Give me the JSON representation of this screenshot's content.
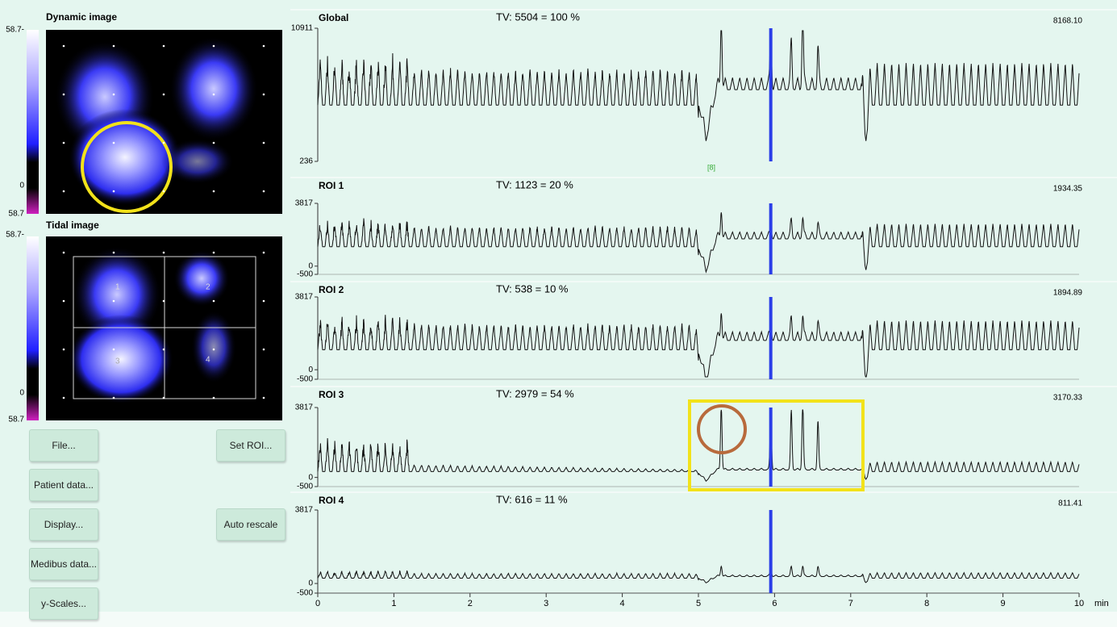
{
  "dynamic": {
    "title": "Dynamic image",
    "scale": {
      "top": "58.7-",
      "zero": "0",
      "bottom": "58.7"
    }
  },
  "tidal": {
    "title": "Tidal image",
    "scale": {
      "top": "58.7-",
      "zero": "0",
      "bottom": "58.7"
    },
    "roi_labels": [
      "1",
      "2",
      "3",
      "4"
    ]
  },
  "buttons": {
    "left": [
      "File...",
      "Patient data...",
      "Display...",
      "Medibus data...",
      "y-Scales..."
    ],
    "right": [
      "Set ROI...",
      "Auto rescale"
    ]
  },
  "plots": [
    {
      "name": "Global",
      "tv": "TV: 5504 = 100 %",
      "value": "8168.10",
      "ylim": [
        236,
        10911
      ],
      "yticks": [
        10911,
        236
      ]
    },
    {
      "name": "ROI 1",
      "tv": "TV: 1123 = 20 %",
      "value": "1934.35",
      "ylim": [
        -500,
        3817
      ],
      "yticks": [
        3817,
        0,
        -500
      ]
    },
    {
      "name": "ROI 2",
      "tv": "TV: 538 = 10 %",
      "value": "1894.89",
      "ylim": [
        -500,
        3817
      ],
      "yticks": [
        3817,
        0,
        -500
      ]
    },
    {
      "name": "ROI 3",
      "tv": "TV: 2979 = 54 %",
      "value": "3170.33",
      "ylim": [
        -500,
        3817
      ],
      "yticks": [
        3817,
        0,
        -500
      ]
    },
    {
      "name": "ROI 4",
      "tv": "TV: 616 = 11 %",
      "value": "811.41",
      "ylim": [
        -500,
        3817
      ],
      "yticks": [
        3817,
        0,
        -500
      ]
    }
  ],
  "marker": "[8]",
  "x_axis": {
    "xlim": [
      0,
      10
    ],
    "xticks": [
      0,
      1,
      2,
      3,
      4,
      5,
      6,
      7,
      8,
      9,
      10
    ],
    "unit": "min"
  }
}
